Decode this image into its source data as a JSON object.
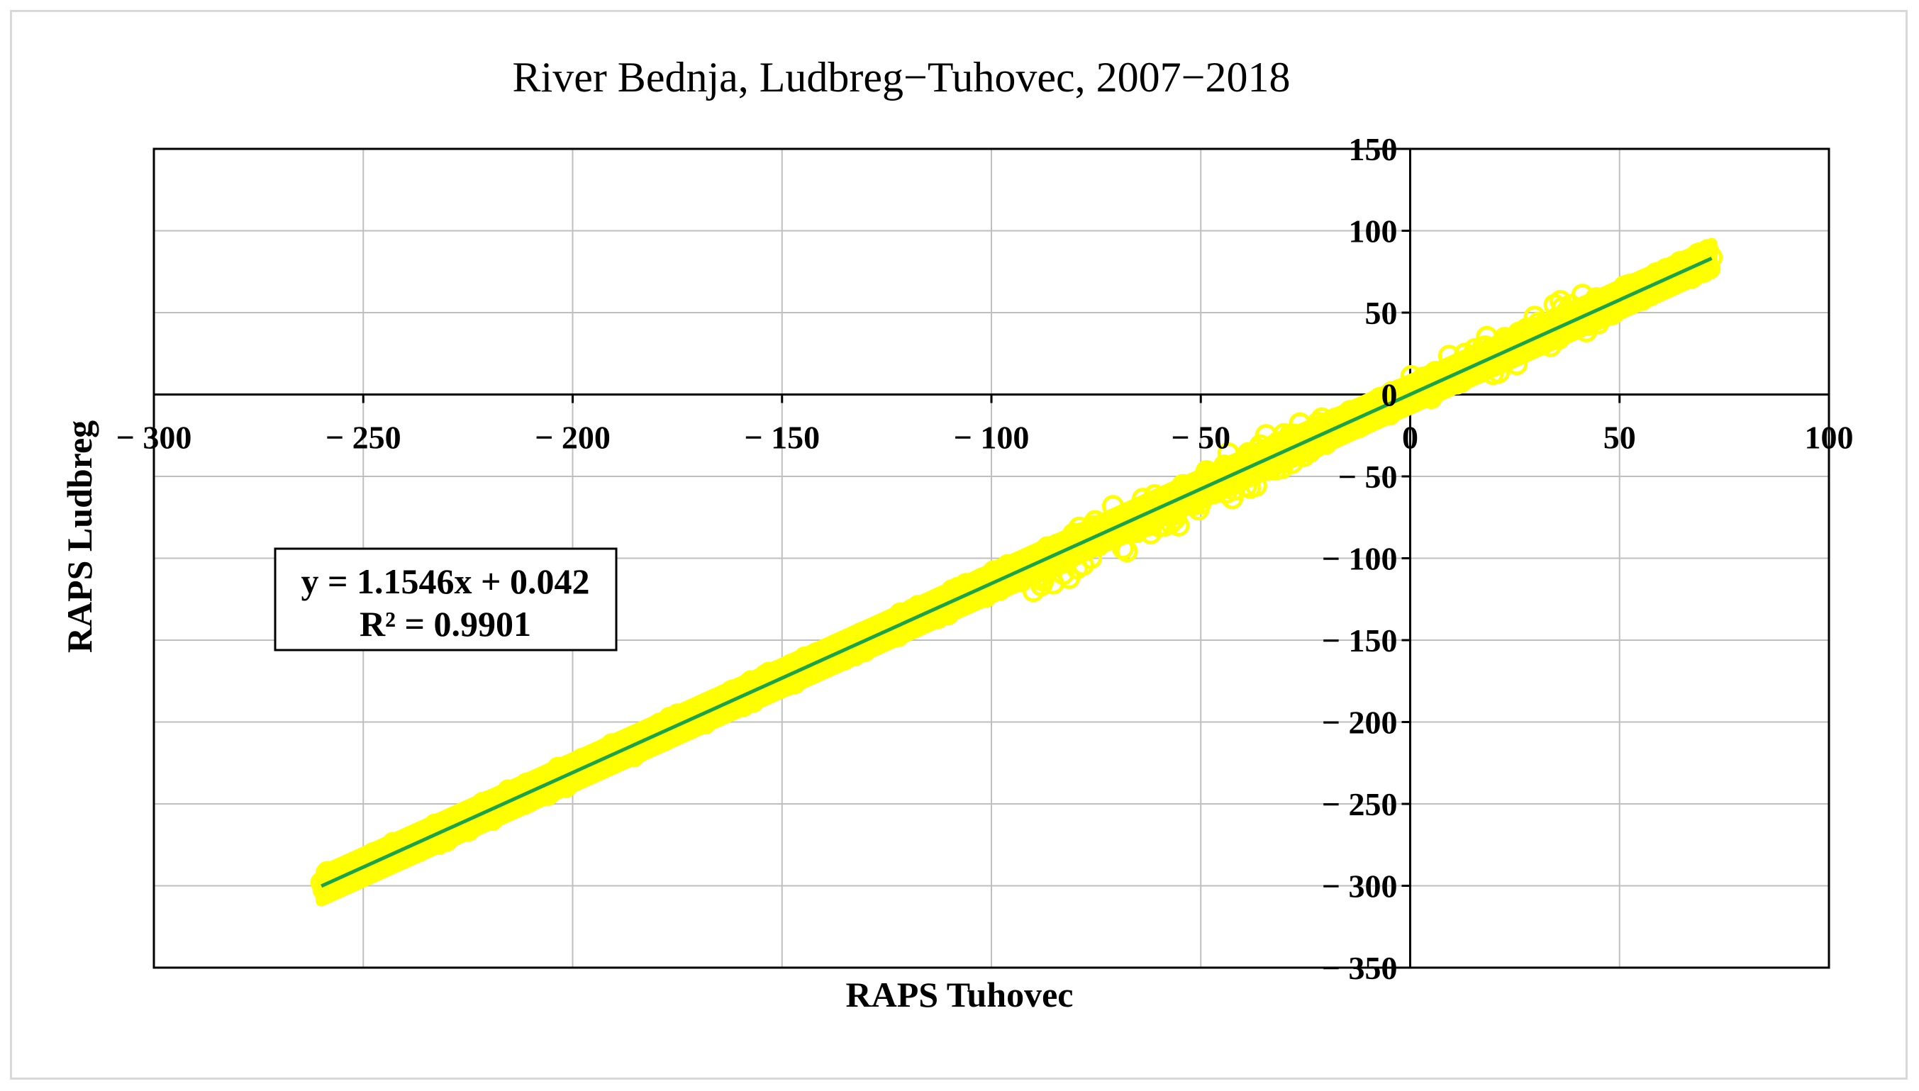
{
  "chart_data": {
    "type": "scatter",
    "title": "River Bednja, Ludbreg−Tuhovec, 2007−2018",
    "xlabel": "RAPS Tuhovec",
    "ylabel": "RAPS Ludbreg",
    "xlim": [
      -300,
      100
    ],
    "ylim": [
      -350,
      150
    ],
    "x_ticks": [
      -300,
      -250,
      -200,
      -150,
      -100,
      -50,
      0,
      50,
      100
    ],
    "x_tick_labels": [
      "− 300",
      "− 250",
      "− 200",
      "− 150",
      "− 100",
      "− 50",
      "0",
      "50",
      "100"
    ],
    "y_ticks": [
      150,
      100,
      50,
      0,
      -50,
      -100,
      -150,
      -200,
      -250,
      -300,
      -350
    ],
    "y_tick_labels": [
      "150",
      "100",
      "50",
      "0",
      "− 50",
      "− 100",
      "− 150",
      "− 200",
      "− 250",
      "− 300",
      "− 350"
    ],
    "grid": true,
    "series": [
      {
        "marker": "open-circle",
        "color": "#ffff00",
        "x_range": [
          -260,
          72
        ],
        "density": "continuous dense band of points"
      }
    ],
    "trendline": {
      "type": "linear",
      "slope": 1.1546,
      "intercept": 0.042,
      "r_squared": 0.9901,
      "color": "#1aa34a",
      "x_range": [
        -260,
        72
      ]
    },
    "equation_box": {
      "line1": "y = 1.1546x + 0.042",
      "line2": "R² = 0.9901"
    }
  }
}
